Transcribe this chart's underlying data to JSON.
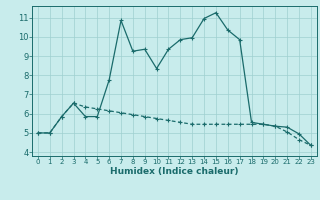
{
  "xlabel": "Humidex (Indice chaleur)",
  "bg_color": "#c8ecec",
  "grid_color": "#9fd0d0",
  "line_color": "#1a6b6b",
  "xlim": [
    -0.5,
    23.5
  ],
  "ylim": [
    3.8,
    11.6
  ],
  "yticks": [
    4,
    5,
    6,
    7,
    8,
    9,
    10,
    11
  ],
  "xticks": [
    0,
    1,
    2,
    3,
    4,
    5,
    6,
    7,
    8,
    9,
    10,
    11,
    12,
    13,
    14,
    15,
    16,
    17,
    18,
    19,
    20,
    21,
    22,
    23
  ],
  "line1_x": [
    0,
    1,
    2,
    3,
    4,
    5,
    6,
    7,
    8,
    9,
    10,
    11,
    12,
    13,
    14,
    15,
    16,
    17,
    18,
    19,
    20,
    21,
    22,
    23
  ],
  "line1_y": [
    5.0,
    5.0,
    5.85,
    6.55,
    5.85,
    5.85,
    7.75,
    10.85,
    9.25,
    9.35,
    8.35,
    9.35,
    9.85,
    9.95,
    10.95,
    11.25,
    10.35,
    9.85,
    5.55,
    5.45,
    5.35,
    5.3,
    4.95,
    4.35
  ],
  "line2_x": [
    0,
    1,
    2,
    3,
    4,
    5,
    6,
    7,
    8,
    9,
    10,
    11,
    12,
    13,
    14,
    15,
    16,
    17,
    18,
    19,
    20,
    21,
    22,
    23
  ],
  "line2_y": [
    5.0,
    5.0,
    5.85,
    6.55,
    6.35,
    6.25,
    6.15,
    6.05,
    5.95,
    5.85,
    5.75,
    5.65,
    5.55,
    5.45,
    5.45,
    5.45,
    5.45,
    5.45,
    5.45,
    5.45,
    5.35,
    5.05,
    4.65,
    4.35
  ]
}
